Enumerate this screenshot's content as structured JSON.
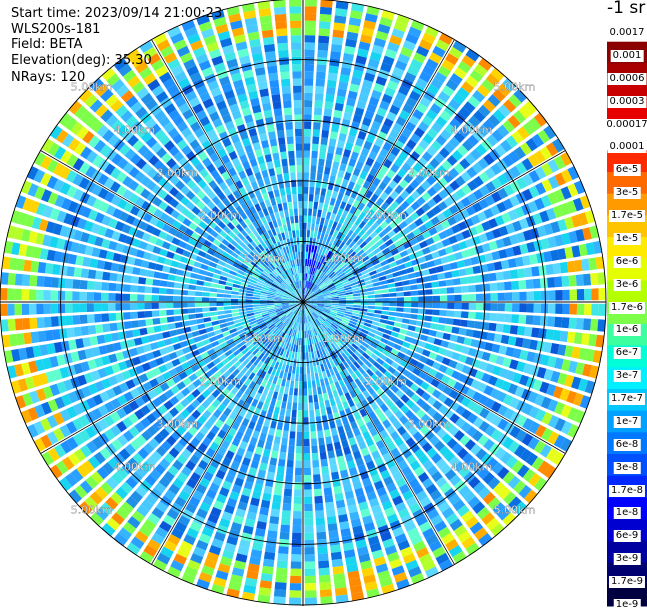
{
  "header": {
    "start_time": "Start time: 2023/09/14 21:00:23",
    "instrument": "WLS200s-181",
    "field": "Field: BETA",
    "elevation": "Elevation(deg): 35.30",
    "nrays": "NRays: 120"
  },
  "colorbar": {
    "unit_label": "-1 sr",
    "labels": [
      "0.0017",
      "0.001",
      "0.0006",
      "0.0003",
      "0.00017",
      "0.0001",
      "6e-5",
      "3e-5",
      "1.7e-5",
      "1e-5",
      "6e-6",
      "3e-6",
      "1.7e-6",
      "1e-6",
      "6e-7",
      "3e-7",
      "1.7e-7",
      "1e-7",
      "6e-8",
      "3e-8",
      "1.7e-8",
      "1e-8",
      "6e-9",
      "3e-9",
      "1.7e-9",
      "1e-9"
    ],
    "colors": [
      "#ffffff",
      "#8b0000",
      "#a80000",
      "#c80000",
      "#e60000",
      "#ffffff",
      "#ff2a00",
      "#ff6a00",
      "#ff9a00",
      "#ffc400",
      "#ffea00",
      "#e6ff00",
      "#b4ff00",
      "#7dff4a",
      "#3effa0",
      "#00ffd8",
      "#00f0ff",
      "#00c8ff",
      "#00a0ff",
      "#0078ff",
      "#0050ff",
      "#0028ff",
      "#0000ff",
      "#0000d0",
      "#0000a0",
      "#000070",
      "#000040"
    ]
  },
  "chart_data": {
    "type": "heatmap",
    "projection": "polar PPI (range-azimuth)",
    "field": "BETA",
    "rays": 120,
    "max_range_km": 5,
    "range_ring_labels": [
      "1.00km",
      "2.00km",
      "3.00km",
      "4.00km",
      "5.00km"
    ],
    "range_rings_km": [
      1,
      2,
      3,
      4,
      5
    ],
    "colorscale": "log, 1e-9 to 0.0017 sr^-1",
    "features": [
      {
        "description_of": "dominant background",
        "value_range": [
          1e-07,
          6e-07
        ]
      },
      {
        "description_of": "enhanced ring near 4.5-4.9 km",
        "value_range": [
          6e-06,
          1e-05
        ]
      },
      {
        "description_of": "low values near origin NNE",
        "value_range": [
          1e-09,
          3e-09
        ]
      }
    ]
  }
}
